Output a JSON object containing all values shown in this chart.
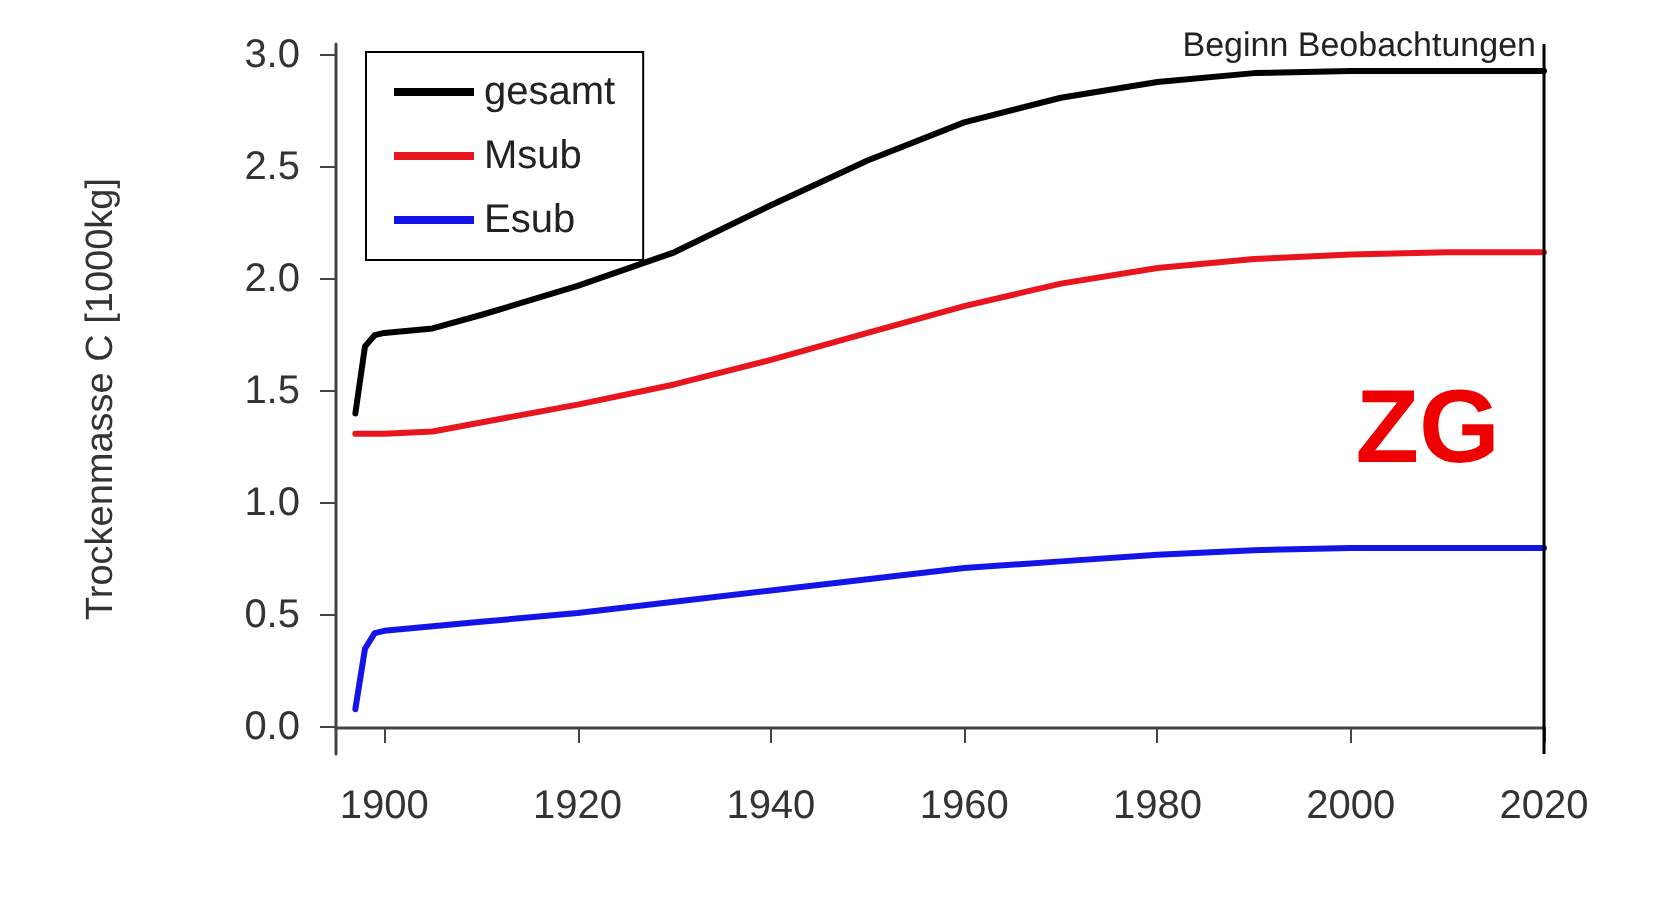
{
  "chart_data": {
    "type": "line",
    "ylabel": "Trockenmasse C [1000kg]",
    "xlim": [
      1895,
      2020
    ],
    "xticks": [
      1900,
      1920,
      1940,
      1960,
      1980,
      2000,
      2020
    ],
    "ylim": [
      -0.12,
      3.05
    ],
    "yticks": [
      {
        "value": 0,
        "label": "0.0"
      },
      0.5,
      {
        "value": 1,
        "label": "1.0"
      },
      1.5,
      {
        "value": 2,
        "label": "2.0"
      },
      2.5,
      {
        "value": 3,
        "label": "3.0"
      }
    ],
    "grid": false,
    "legend": "top left",
    "marker": "none",
    "line_style": "solid",
    "series": [
      {
        "name": "gesamt",
        "color": "#000000",
        "x": [
          1897,
          1898,
          1899,
          1900,
          1905,
          1910,
          1920,
          1930,
          1940,
          1950,
          1960,
          1970,
          1980,
          1990,
          2000,
          2010,
          2020
        ],
        "values": [
          1.4,
          1.7,
          1.75,
          1.76,
          1.78,
          1.84,
          1.97,
          2.12,
          2.33,
          2.53,
          2.7,
          2.81,
          2.88,
          2.92,
          2.93,
          2.93,
          2.93
        ]
      },
      {
        "name": "Msub",
        "color": "#e8141e",
        "x": [
          1897,
          1900,
          1905,
          1910,
          1920,
          1930,
          1940,
          1950,
          1960,
          1970,
          1980,
          1990,
          2000,
          2010,
          2020
        ],
        "values": [
          1.31,
          1.31,
          1.32,
          1.36,
          1.44,
          1.53,
          1.64,
          1.76,
          1.88,
          1.98,
          2.05,
          2.09,
          2.11,
          2.12,
          2.12
        ]
      },
      {
        "name": "Esub",
        "color": "#1414e8",
        "x": [
          1897,
          1898,
          1899,
          1900,
          1910,
          1920,
          1930,
          1940,
          1950,
          1960,
          1970,
          1980,
          1990,
          2000,
          2010,
          2020
        ],
        "values": [
          0.08,
          0.35,
          0.42,
          0.43,
          0.47,
          0.51,
          0.56,
          0.61,
          0.66,
          0.71,
          0.74,
          0.77,
          0.79,
          0.8,
          0.8,
          0.8
        ]
      }
    ],
    "ref_lines": [
      {
        "axis": "x",
        "value": 2020,
        "label": "Beginn Beobachtungen",
        "color": "#000000"
      }
    ],
    "annotations": [
      "ZG"
    ]
  }
}
